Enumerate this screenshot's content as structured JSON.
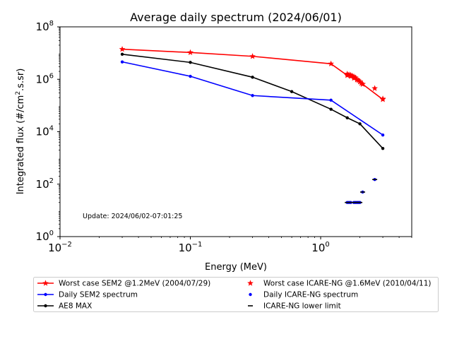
{
  "chart_data": {
    "type": "line",
    "title": "Average daily spectrum (2024/06/01)",
    "xlabel": "Energy (MeV)",
    "ylabel_main": "Integrated flux (#/cm",
    "ylabel_sup": "2",
    "ylabel_end": ".s.sr)",
    "xscale": "log",
    "yscale": "log",
    "xlim": [
      0.01,
      5.0
    ],
    "ylim": [
      1,
      100000000
    ],
    "x_ticks": [
      {
        "value": 0.01,
        "base": "10",
        "exp": "−2"
      },
      {
        "value": 0.1,
        "base": "10",
        "exp": "−1"
      },
      {
        "value": 1,
        "base": "10",
        "exp": "0"
      }
    ],
    "y_ticks": [
      {
        "value": 1,
        "base": "10",
        "exp": "0"
      },
      {
        "value": 100,
        "base": "10",
        "exp": "2"
      },
      {
        "value": 10000,
        "base": "10",
        "exp": "4"
      },
      {
        "value": 1000000,
        "base": "10",
        "exp": "6"
      },
      {
        "value": 100000000,
        "base": "10",
        "exp": "8"
      }
    ],
    "annotation": "Update: 2024/06/02-07:01:25",
    "series": [
      {
        "name": "Worst case SEM2 @1.2MeV (2004/07/29)",
        "color": "#ff0000",
        "marker": "star",
        "line": true,
        "x": [
          0.03,
          0.1,
          0.3,
          1.2,
          1.6,
          1.7,
          1.8,
          1.9,
          2.0,
          2.1,
          3.0
        ],
        "y": [
          14000000,
          10500000,
          7500000,
          3900000,
          1400000,
          1300000,
          1100000,
          950000,
          820000,
          650000,
          170000
        ]
      },
      {
        "name": "Daily SEM2 spectrum",
        "color": "#0000ff",
        "marker": "dot",
        "line": true,
        "x": [
          0.03,
          0.1,
          0.3,
          1.2,
          3.0
        ],
        "y": [
          4600000,
          1300000,
          240000,
          160000,
          7500
        ]
      },
      {
        "name": "AE8 MAX",
        "color": "#000000",
        "marker": "dot",
        "line": true,
        "x": [
          0.03,
          0.1,
          0.3,
          0.6,
          1.2,
          1.6,
          2.0,
          3.0
        ],
        "y": [
          9000000,
          4400000,
          1200000,
          340000,
          72000,
          34000,
          20000,
          2300
        ]
      },
      {
        "name": "Worst case ICARE-NG @1.6MeV (2010/04/11)",
        "color": "#ff0000",
        "marker": "star",
        "line": false,
        "x": [
          1.6,
          1.65,
          1.7,
          1.75,
          1.8,
          1.85,
          1.9,
          1.95,
          2.0,
          2.05,
          2.1,
          2.6,
          3.0
        ],
        "y": [
          1600000,
          1500000,
          1450000,
          1350000,
          1250000,
          1150000,
          1000000,
          900000,
          800000,
          700000,
          650000,
          450000,
          180000
        ]
      },
      {
        "name": "Daily ICARE-NG spectrum",
        "color": "#0000ff",
        "marker": "dot",
        "line": false,
        "x": [
          1.6,
          1.65,
          1.7,
          1.8,
          1.85,
          1.9,
          1.95,
          2.0,
          2.1,
          2.6
        ],
        "y": [
          20,
          20,
          20,
          20,
          20,
          20,
          20,
          20,
          50,
          150
        ]
      },
      {
        "name": "ICARE-NG lower limit",
        "color": "#000000",
        "marker": "hline",
        "line": false,
        "x": [
          1.6,
          1.65,
          1.7,
          1.8,
          1.85,
          1.9,
          1.95,
          2.0,
          2.1,
          2.6
        ],
        "y": [
          20,
          20,
          20,
          20,
          20,
          20,
          20,
          20,
          50,
          150
        ]
      }
    ],
    "legend": {
      "placement": "below",
      "columns": 2,
      "order": [
        0,
        3,
        1,
        4,
        2,
        5
      ]
    }
  }
}
